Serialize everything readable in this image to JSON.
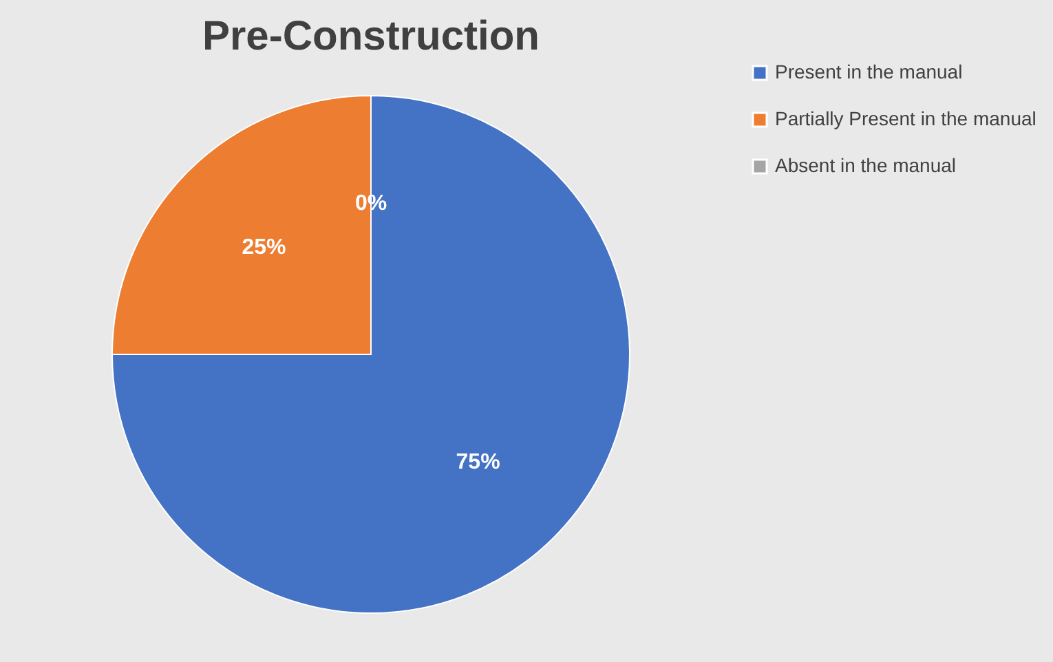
{
  "chart_data": {
    "type": "pie",
    "title": "Pre-Construction",
    "categories": [
      "Present in the manual",
      "Partially Present in the manual",
      "Absent in the manual"
    ],
    "values": [
      75,
      25,
      0
    ],
    "colors": [
      "#4472c4",
      "#ed7d31",
      "#a5a5a5"
    ],
    "value_labels": [
      "75%",
      "25%",
      "0%"
    ],
    "legend": "right"
  }
}
